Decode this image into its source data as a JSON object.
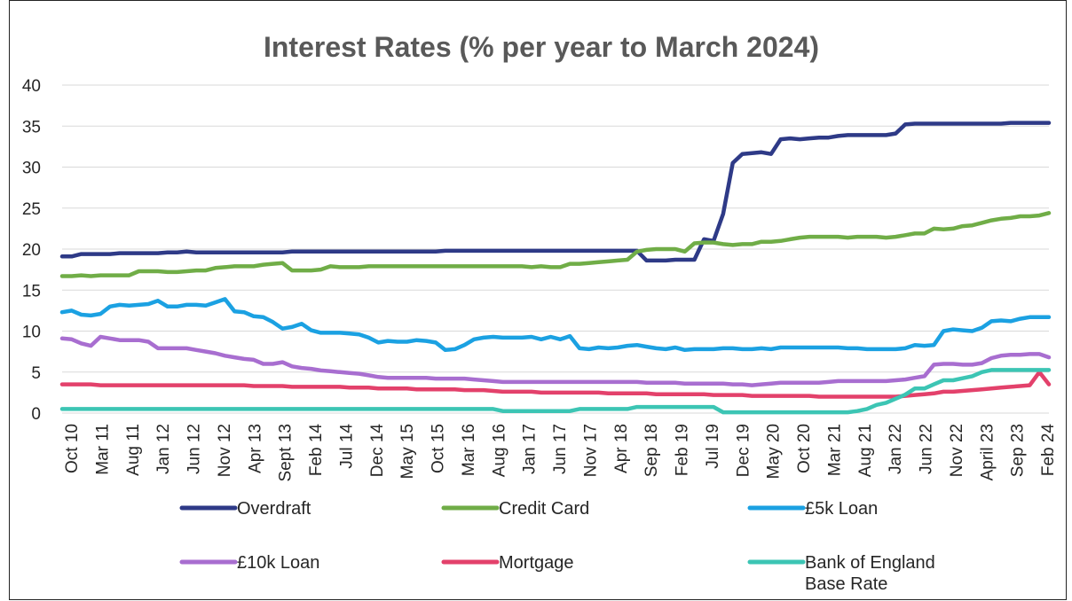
{
  "chart_data": {
    "type": "line",
    "title": "Interest Rates (% per year to March 2024)",
    "ylim": [
      0,
      40
    ],
    "yticks": [
      0,
      5,
      10,
      15,
      20,
      25,
      30,
      35,
      40
    ],
    "x_tick_labels": [
      "Oct 10",
      "Mar 11",
      "Aug 11",
      "Jan 12",
      "Jun 12",
      "Nov 12",
      "Apr 13",
      "Sept 13",
      "Feb 14",
      "Jul 14",
      "Dec 14",
      "May 15",
      "Oct 15",
      "Mar 16",
      "Aug 16",
      "Jan 17",
      "Jun 17",
      "Nov 17",
      "Apr 18",
      "Sep 18",
      "Feb 19",
      "Jul 19",
      "Dec 19",
      "May 20",
      "Oct 20",
      "Mar 21",
      "Aug 21",
      "Jan 22",
      "Jun 22",
      "Nov 22",
      "April 23",
      "Sep 23",
      "Feb 24"
    ],
    "grid": true,
    "legend_position": "bottom",
    "series": [
      {
        "name": "Overdraft",
        "color": "#2e3a87",
        "values": [
          19.1,
          19.1,
          19.4,
          19.4,
          19.4,
          19.4,
          19.5,
          19.5,
          19.5,
          19.5,
          19.5,
          19.6,
          19.6,
          19.7,
          19.6,
          19.6,
          19.6,
          19.6,
          19.6,
          19.6,
          19.6,
          19.6,
          19.6,
          19.6,
          19.7,
          19.7,
          19.7,
          19.7,
          19.7,
          19.7,
          19.7,
          19.7,
          19.7,
          19.7,
          19.7,
          19.7,
          19.7,
          19.7,
          19.7,
          19.7,
          19.8,
          19.8,
          19.8,
          19.8,
          19.8,
          19.8,
          19.8,
          19.8,
          19.8,
          19.8,
          19.8,
          19.8,
          19.8,
          19.8,
          19.8,
          19.8,
          19.8,
          19.8,
          19.8,
          19.8,
          19.8,
          18.6,
          18.6,
          18.6,
          18.7,
          18.7,
          18.7,
          21.2,
          21.0,
          24.3,
          30.5,
          31.6,
          31.7,
          31.8,
          31.6,
          33.4,
          33.5,
          33.4,
          33.5,
          33.6,
          33.6,
          33.8,
          33.9,
          33.9,
          33.9,
          33.9,
          33.9,
          34.1,
          35.2,
          35.3,
          35.3,
          35.3,
          35.3,
          35.3,
          35.3,
          35.3,
          35.3,
          35.3,
          35.3,
          35.4,
          35.4,
          35.4,
          35.4,
          35.4
        ]
      },
      {
        "name": "Credit Card",
        "color": "#70ad47",
        "values": [
          16.7,
          16.7,
          16.8,
          16.7,
          16.8,
          16.8,
          16.8,
          16.8,
          17.3,
          17.3,
          17.3,
          17.2,
          17.2,
          17.3,
          17.4,
          17.4,
          17.7,
          17.8,
          17.9,
          17.9,
          17.9,
          18.1,
          18.2,
          18.3,
          17.4,
          17.4,
          17.4,
          17.5,
          17.9,
          17.8,
          17.8,
          17.8,
          17.9,
          17.9,
          17.9,
          17.9,
          17.9,
          17.9,
          17.9,
          17.9,
          17.9,
          17.9,
          17.9,
          17.9,
          17.9,
          17.9,
          17.9,
          17.9,
          17.9,
          17.8,
          17.9,
          17.8,
          17.8,
          18.2,
          18.2,
          18.3,
          18.4,
          18.5,
          18.6,
          18.7,
          19.7,
          19.9,
          20.0,
          20.0,
          20.0,
          19.7,
          20.7,
          20.8,
          20.8,
          20.6,
          20.5,
          20.6,
          20.6,
          20.9,
          20.9,
          21.0,
          21.2,
          21.4,
          21.5,
          21.5,
          21.5,
          21.5,
          21.4,
          21.5,
          21.5,
          21.5,
          21.4,
          21.5,
          21.7,
          21.9,
          21.9,
          22.5,
          22.4,
          22.5,
          22.8,
          22.9,
          23.2,
          23.5,
          23.7,
          23.8,
          24.0,
          24.0,
          24.1,
          24.4
        ]
      },
      {
        "name": "£5k Loan",
        "color": "#1ba1e2",
        "values": [
          12.3,
          12.5,
          12.0,
          11.9,
          12.1,
          13.0,
          13.2,
          13.1,
          13.2,
          13.3,
          13.7,
          13.0,
          13.0,
          13.2,
          13.2,
          13.1,
          13.5,
          13.9,
          12.4,
          12.3,
          11.8,
          11.7,
          11.1,
          10.3,
          10.5,
          10.9,
          10.1,
          9.8,
          9.8,
          9.8,
          9.7,
          9.6,
          9.2,
          8.6,
          8.8,
          8.7,
          8.7,
          8.9,
          8.8,
          8.6,
          7.7,
          7.8,
          8.3,
          9.0,
          9.2,
          9.3,
          9.2,
          9.2,
          9.2,
          9.3,
          9.0,
          9.3,
          9.0,
          9.4,
          7.9,
          7.8,
          8.0,
          7.9,
          8.0,
          8.2,
          8.3,
          8.1,
          7.9,
          7.8,
          8.0,
          7.7,
          7.8,
          7.8,
          7.8,
          7.9,
          7.9,
          7.8,
          7.8,
          7.9,
          7.8,
          8.0,
          8.0,
          8.0,
          8.0,
          8.0,
          8.0,
          8.0,
          7.9,
          7.9,
          7.8,
          7.8,
          7.8,
          7.8,
          7.9,
          8.3,
          8.2,
          8.3,
          10.0,
          10.2,
          10.1,
          10.0,
          10.4,
          11.2,
          11.3,
          11.2,
          11.5,
          11.7,
          11.7,
          11.7
        ]
      },
      {
        "name": "£10k Loan",
        "color": "#a86ed0",
        "values": [
          9.1,
          9.0,
          8.5,
          8.2,
          9.3,
          9.1,
          8.9,
          8.9,
          8.9,
          8.7,
          7.9,
          7.9,
          7.9,
          7.9,
          7.7,
          7.5,
          7.3,
          7.0,
          6.8,
          6.6,
          6.5,
          6.0,
          6.0,
          6.2,
          5.7,
          5.5,
          5.4,
          5.2,
          5.1,
          5.0,
          4.9,
          4.8,
          4.6,
          4.4,
          4.3,
          4.3,
          4.3,
          4.3,
          4.3,
          4.2,
          4.2,
          4.2,
          4.2,
          4.1,
          4.0,
          3.9,
          3.8,
          3.8,
          3.8,
          3.8,
          3.8,
          3.8,
          3.8,
          3.8,
          3.8,
          3.8,
          3.8,
          3.8,
          3.8,
          3.8,
          3.8,
          3.7,
          3.7,
          3.7,
          3.7,
          3.6,
          3.6,
          3.6,
          3.6,
          3.6,
          3.5,
          3.5,
          3.4,
          3.5,
          3.6,
          3.7,
          3.7,
          3.7,
          3.7,
          3.7,
          3.8,
          3.9,
          3.9,
          3.9,
          3.9,
          3.9,
          3.9,
          4.0,
          4.1,
          4.3,
          4.5,
          5.9,
          6.0,
          6.0,
          5.9,
          5.9,
          6.1,
          6.7,
          7.0,
          7.1,
          7.1,
          7.2,
          7.2,
          6.8
        ]
      },
      {
        "name": "Mortgage",
        "color": "#e3416b",
        "values": [
          3.5,
          3.5,
          3.5,
          3.5,
          3.4,
          3.4,
          3.4,
          3.4,
          3.4,
          3.4,
          3.4,
          3.4,
          3.4,
          3.4,
          3.4,
          3.4,
          3.4,
          3.4,
          3.4,
          3.4,
          3.3,
          3.3,
          3.3,
          3.3,
          3.2,
          3.2,
          3.2,
          3.2,
          3.2,
          3.2,
          3.1,
          3.1,
          3.1,
          3.0,
          3.0,
          3.0,
          3.0,
          2.9,
          2.9,
          2.9,
          2.9,
          2.9,
          2.8,
          2.8,
          2.8,
          2.7,
          2.6,
          2.6,
          2.6,
          2.6,
          2.5,
          2.5,
          2.5,
          2.5,
          2.5,
          2.5,
          2.5,
          2.4,
          2.4,
          2.4,
          2.4,
          2.4,
          2.3,
          2.3,
          2.3,
          2.3,
          2.3,
          2.3,
          2.2,
          2.2,
          2.2,
          2.2,
          2.1,
          2.1,
          2.1,
          2.1,
          2.1,
          2.1,
          2.1,
          2.0,
          2.0,
          2.0,
          2.0,
          2.0,
          2.0,
          2.0,
          2.0,
          2.0,
          2.1,
          2.2,
          2.3,
          2.4,
          2.6,
          2.6,
          2.7,
          2.8,
          2.9,
          3.0,
          3.1,
          3.2,
          3.3,
          3.4,
          5.0,
          3.5
        ]
      },
      {
        "name": "Bank of England Base Rate",
        "name_lines": [
          "Bank of England",
          "Base Rate"
        ],
        "color": "#3cc5b4",
        "values": [
          0.5,
          0.5,
          0.5,
          0.5,
          0.5,
          0.5,
          0.5,
          0.5,
          0.5,
          0.5,
          0.5,
          0.5,
          0.5,
          0.5,
          0.5,
          0.5,
          0.5,
          0.5,
          0.5,
          0.5,
          0.5,
          0.5,
          0.5,
          0.5,
          0.5,
          0.5,
          0.5,
          0.5,
          0.5,
          0.5,
          0.5,
          0.5,
          0.5,
          0.5,
          0.5,
          0.5,
          0.5,
          0.5,
          0.5,
          0.5,
          0.5,
          0.5,
          0.5,
          0.5,
          0.5,
          0.5,
          0.25,
          0.25,
          0.25,
          0.25,
          0.25,
          0.25,
          0.25,
          0.25,
          0.5,
          0.5,
          0.5,
          0.5,
          0.5,
          0.5,
          0.75,
          0.75,
          0.75,
          0.75,
          0.75,
          0.75,
          0.75,
          0.75,
          0.75,
          0.1,
          0.1,
          0.1,
          0.1,
          0.1,
          0.1,
          0.1,
          0.1,
          0.1,
          0.1,
          0.1,
          0.1,
          0.1,
          0.1,
          0.25,
          0.5,
          1.0,
          1.25,
          1.75,
          2.25,
          3.0,
          3.0,
          3.5,
          4.0,
          4.0,
          4.25,
          4.5,
          5.0,
          5.25,
          5.25,
          5.25,
          5.25,
          5.25,
          5.25,
          5.25
        ]
      }
    ]
  }
}
